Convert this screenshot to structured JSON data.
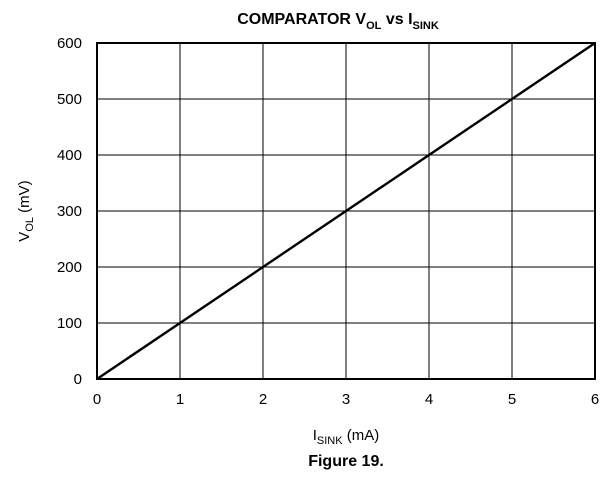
{
  "chart_data": {
    "type": "line",
    "title": {
      "main": "COMPARATOR V",
      "sub1": "OL",
      "mid": " vs I",
      "sub2": "SINK"
    },
    "xlabel": {
      "main": "I",
      "sub": "SINK",
      "rest": " (mA)"
    },
    "ylabel": {
      "main": "V",
      "sub": "OL",
      "rest": " (mV)"
    },
    "xlim": [
      0,
      6
    ],
    "ylim": [
      0,
      600
    ],
    "x_ticks": [
      "0",
      "1",
      "2",
      "3",
      "4",
      "5",
      "6"
    ],
    "y_ticks": [
      "0",
      "100",
      "200",
      "300",
      "400",
      "500",
      "600"
    ],
    "grid": true,
    "series": [
      {
        "x": [
          0,
          1,
          2,
          3,
          4,
          5,
          6
        ],
        "y": [
          0,
          100,
          200,
          300,
          400,
          500,
          600
        ]
      }
    ]
  },
  "caption": "Figure 19."
}
